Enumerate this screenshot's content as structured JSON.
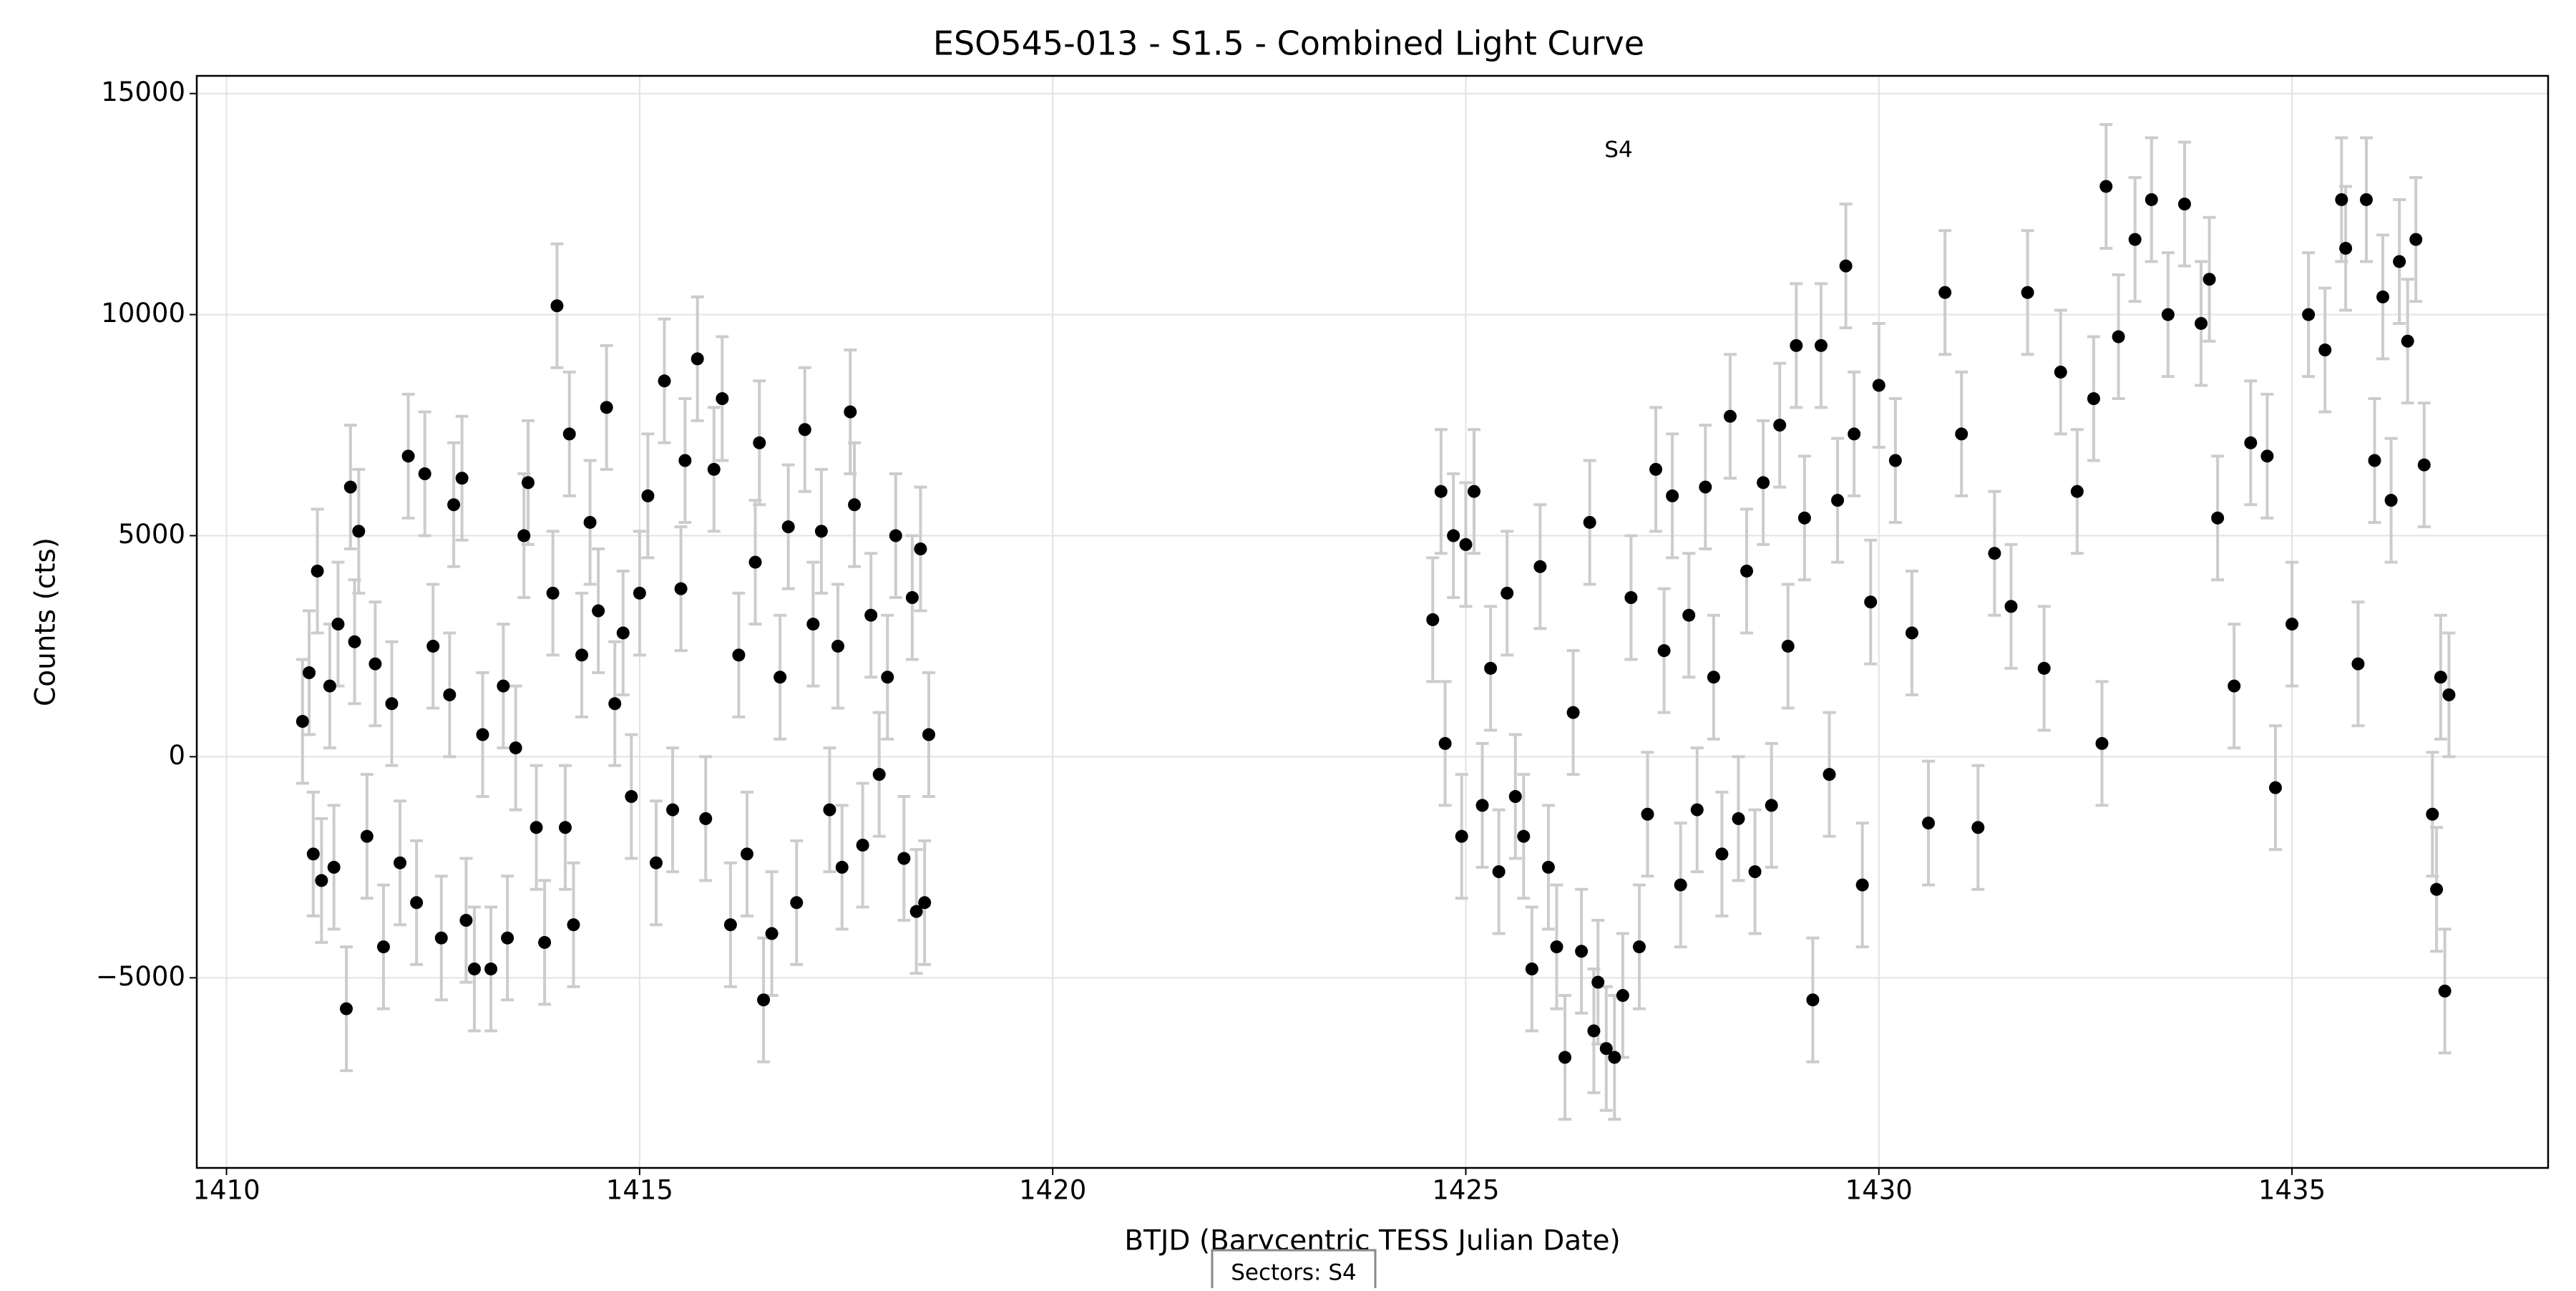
{
  "chart_data": {
    "type": "scatter",
    "title": "ESO545-013 - S1.5 - Combined Light Curve",
    "x_label": "BTJD (Barycentric TESS Julian Date)",
    "y_label": "Counts (cts)",
    "annotation": "S4",
    "sectors_label": "Sectors: S4",
    "color": "#000000",
    "error_color": "#cccccc",
    "yerr": 1400,
    "grid": true,
    "xlim": [
      1409.64,
      1438.1
    ],
    "ylim": [
      -9300,
      15400
    ],
    "xticks": [
      1410,
      1415,
      1420,
      1425,
      1430,
      1435
    ],
    "yticks": [
      {
        "value": -5000,
        "label": "−5000"
      },
      0,
      5000,
      10000,
      15000
    ],
    "x": [
      1410.92,
      1411.0,
      1411.05,
      1411.1,
      1411.15,
      1411.25,
      1411.3,
      1411.35,
      1411.45,
      1411.5,
      1411.55,
      1411.6,
      1411.7,
      1411.8,
      1411.9,
      1412.0,
      1412.1,
      1412.2,
      1412.3,
      1412.4,
      1412.5,
      1412.6,
      1412.7,
      1412.75,
      1412.85,
      1412.9,
      1413.0,
      1413.1,
      1413.2,
      1413.35,
      1413.4,
      1413.5,
      1413.6,
      1413.65,
      1413.75,
      1413.85,
      1413.95,
      1414.0,
      1414.1,
      1414.15,
      1414.2,
      1414.3,
      1414.4,
      1414.5,
      1414.6,
      1414.7,
      1414.8,
      1414.9,
      1415.0,
      1415.1,
      1415.2,
      1415.3,
      1415.4,
      1415.5,
      1415.55,
      1415.7,
      1415.8,
      1415.9,
      1416.0,
      1416.1,
      1416.2,
      1416.3,
      1416.4,
      1416.45,
      1416.5,
      1416.6,
      1416.7,
      1416.8,
      1416.9,
      1417.0,
      1417.1,
      1417.2,
      1417.3,
      1417.4,
      1417.45,
      1417.55,
      1417.6,
      1417.7,
      1417.8,
      1417.9,
      1418.0,
      1418.1,
      1418.2,
      1418.3,
      1418.35,
      1418.4,
      1418.45,
      1418.5,
      1424.6,
      1424.7,
      1424.75,
      1424.85,
      1424.95,
      1425.0,
      1425.1,
      1425.2,
      1425.3,
      1425.4,
      1425.5,
      1425.6,
      1425.7,
      1425.8,
      1425.9,
      1426.0,
      1426.1,
      1426.2,
      1426.3,
      1426.4,
      1426.5,
      1426.55,
      1426.6,
      1426.7,
      1426.8,
      1426.9,
      1427.0,
      1427.1,
      1427.2,
      1427.3,
      1427.4,
      1427.5,
      1427.6,
      1427.7,
      1427.8,
      1427.9,
      1428.0,
      1428.1,
      1428.2,
      1428.3,
      1428.4,
      1428.5,
      1428.6,
      1428.7,
      1428.8,
      1428.9,
      1429.0,
      1429.1,
      1429.2,
      1429.3,
      1429.4,
      1429.5,
      1429.6,
      1429.7,
      1429.8,
      1429.9,
      1430.0,
      1430.2,
      1430.4,
      1430.6,
      1430.8,
      1431.0,
      1431.2,
      1431.4,
      1431.6,
      1431.8,
      1432.0,
      1432.2,
      1432.4,
      1432.6,
      1432.7,
      1432.75,
      1432.9,
      1433.1,
      1433.3,
      1433.5,
      1433.7,
      1433.9,
      1434.0,
      1434.1,
      1434.3,
      1434.5,
      1434.7,
      1434.8,
      1435.0,
      1435.2,
      1435.4,
      1435.6,
      1435.65,
      1435.8,
      1435.9,
      1436.0,
      1436.1,
      1436.2,
      1436.3,
      1436.4,
      1436.5,
      1436.6,
      1436.7,
      1436.75,
      1436.8,
      1436.85,
      1436.9
    ],
    "values": [
      800,
      1900,
      -2200,
      4200,
      -2800,
      1600,
      -2500,
      3000,
      -5700,
      6100,
      2600,
      5100,
      -1800,
      2100,
      -4300,
      1200,
      -2400,
      6800,
      -3300,
      6400,
      2500,
      -4100,
      1400,
      5700,
      6300,
      -3700,
      -4800,
      500,
      -4800,
      1600,
      -4100,
      200,
      5000,
      6200,
      -1600,
      -4200,
      3700,
      10200,
      -1600,
      7300,
      -3800,
      2300,
      5300,
      3300,
      7900,
      1200,
      2800,
      -900,
      3700,
      5900,
      -2400,
      8500,
      -1200,
      3800,
      6700,
      9000,
      -1400,
      6500,
      8100,
      -3800,
      2300,
      -2200,
      4400,
      7100,
      -5500,
      -4000,
      1800,
      5200,
      -3300,
      7400,
      3000,
      5100,
      -1200,
      2500,
      -2500,
      7800,
      5700,
      -2000,
      3200,
      -400,
      1800,
      5000,
      -2300,
      3600,
      -3500,
      4700,
      -3300,
      500,
      3100,
      6000,
      300,
      5000,
      -1800,
      4800,
      6000,
      -1100,
      2000,
      -2600,
      3700,
      -900,
      -1800,
      -4800,
      4300,
      -2500,
      -4300,
      -6800,
      1000,
      -4400,
      5300,
      -6200,
      -5100,
      -6600,
      -6800,
      -5400,
      3600,
      -4300,
      -1300,
      6500,
      2400,
      5900,
      -2900,
      3200,
      -1200,
      6100,
      1800,
      -2200,
      7700,
      -1400,
      4200,
      -2600,
      6200,
      -1100,
      7500,
      2500,
      9300,
      5400,
      -5500,
      9300,
      -400,
      5800,
      11100,
      7300,
      -2900,
      3500,
      8400,
      6700,
      2800,
      -1500,
      10500,
      7300,
      -1600,
      4600,
      3400,
      10500,
      2000,
      8700,
      6000,
      8100,
      300,
      12900,
      9500,
      11700,
      12600,
      10000,
      12500,
      9800,
      10800,
      5400,
      1600,
      7100,
      6800,
      -700,
      3000,
      10000,
      9200,
      12600,
      11500,
      2100,
      12600,
      6700,
      10400,
      5800,
      11200,
      9400,
      11700,
      6600,
      -1300,
      -3000,
      1800,
      -5300,
      1400
    ]
  }
}
